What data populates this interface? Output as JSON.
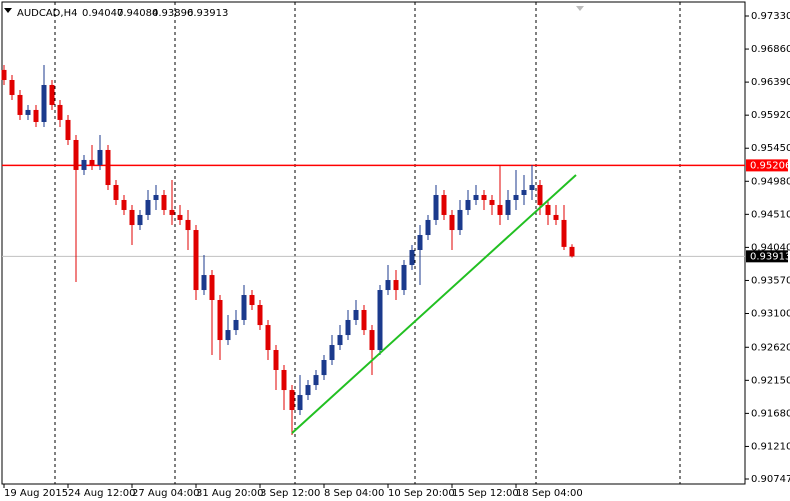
{
  "chart_data": {
    "type": "candlestick",
    "symbol": "AUDCAD,H4",
    "header_values": [
      0.94047,
      0.94084,
      0.93896,
      0.93913
    ],
    "open": [
      0.96563,
      0.9642,
      0.96207,
      0.95923,
      0.95994,
      0.95823,
      0.96349,
      0.96065,
      0.95852,
      0.95567,
      0.95141,
      0.95283,
      0.95212,
      0.95425,
      0.94927,
      0.94714,
      0.94572,
      0.94358,
      0.94501,
      0.94714,
      0.94785,
      0.94572,
      0.94501,
      0.9443,
      0.94287,
      0.93434,
      0.93647,
      0.93292,
      0.92723,
      0.92865,
      0.93008,
      0.93363,
      0.93221,
      0.92936,
      0.92581,
      0.92297,
      0.92012,
      0.91728,
      0.91941,
      0.92083,
      0.92225,
      0.92439,
      0.92652,
      0.92794,
      0.93008,
      0.9315,
      0.92865,
      0.92581,
      0.93434,
      0.93576,
      0.93434,
      0.9379,
      0.94003,
      0.94216,
      0.9443,
      0.94785,
      0.94501,
      0.94287,
      0.94572,
      0.94714,
      0.94785,
      0.94714,
      0.94643,
      0.94501,
      0.94714,
      0.94785,
      0.94856,
      0.94927,
      0.94643,
      0.94501,
      0.9443,
      0.94047
    ],
    "high": [
      0.96634,
      0.96491,
      0.96278,
      0.96065,
      0.96065,
      0.96634,
      0.9642,
      0.96136,
      0.95923,
      0.95638,
      0.95354,
      0.95496,
      0.95638,
      0.95496,
      0.94998,
      0.94785,
      0.94643,
      0.94572,
      0.94856,
      0.94927,
      0.94856,
      0.94998,
      0.94643,
      0.94572,
      0.94358,
      0.93932,
      0.93719,
      0.93363,
      0.93079,
      0.9315,
      0.93505,
      0.93434,
      0.93292,
      0.93008,
      0.92652,
      0.92368,
      0.92083,
      0.92225,
      0.92154,
      0.92297,
      0.9251,
      0.92794,
      0.92936,
      0.9315,
      0.93292,
      0.93221,
      0.92936,
      0.93505,
      0.9379,
      0.93719,
      0.93861,
      0.94074,
      0.94358,
      0.94501,
      0.94927,
      0.94856,
      0.94572,
      0.94714,
      0.94856,
      0.94927,
      0.94856,
      0.94785,
      0.95212,
      0.94856,
      0.95141,
      0.95069,
      0.95212,
      0.94998,
      0.94714,
      0.94643,
      0.94643,
      0.94084
    ],
    "low": [
      0.96349,
      0.96136,
      0.95852,
      0.95852,
      0.95752,
      0.95752,
      0.95994,
      0.95752,
      0.95496,
      0.93548,
      0.95069,
      0.95141,
      0.95141,
      0.94856,
      0.94643,
      0.94501,
      0.94074,
      0.94287,
      0.9443,
      0.94572,
      0.94501,
      0.94358,
      0.94358,
      0.94003,
      0.93292,
      0.93363,
      0.9251,
      0.92439,
      0.92652,
      0.92794,
      0.92936,
      0.9315,
      0.92865,
      0.92439,
      0.92012,
      0.91728,
      0.91372,
      0.91657,
      0.9187,
      0.92012,
      0.92154,
      0.92368,
      0.92581,
      0.92723,
      0.92936,
      0.92794,
      0.92225,
      0.9251,
      0.93363,
      0.93292,
      0.93363,
      0.93719,
      0.93505,
      0.94145,
      0.94358,
      0.9443,
      0.94003,
      0.94216,
      0.94501,
      0.94643,
      0.94572,
      0.94501,
      0.94358,
      0.9443,
      0.94572,
      0.94643,
      0.94714,
      0.94501,
      0.94358,
      0.94358,
      0.94003,
      0.93896
    ],
    "close": [
      0.9642,
      0.96207,
      0.95923,
      0.95994,
      0.95823,
      0.96349,
      0.96065,
      0.95852,
      0.95567,
      0.95141,
      0.95283,
      0.95212,
      0.95425,
      0.94927,
      0.94714,
      0.94572,
      0.94358,
      0.94501,
      0.94714,
      0.94785,
      0.94572,
      0.94501,
      0.9443,
      0.94287,
      0.93434,
      0.93647,
      0.93292,
      0.92723,
      0.92865,
      0.93008,
      0.93363,
      0.93221,
      0.92936,
      0.92581,
      0.92297,
      0.92012,
      0.91728,
      0.91941,
      0.92083,
      0.92225,
      0.92439,
      0.92652,
      0.92794,
      0.93008,
      0.9315,
      0.92865,
      0.92581,
      0.93434,
      0.93576,
      0.93434,
      0.9379,
      0.94003,
      0.94216,
      0.9443,
      0.94785,
      0.94501,
      0.94287,
      0.94572,
      0.94714,
      0.94785,
      0.94714,
      0.94643,
      0.94501,
      0.94714,
      0.94785,
      0.94856,
      0.94927,
      0.94643,
      0.94501,
      0.9443,
      0.94047,
      0.93913
    ],
    "up_color": "#1b3a8c",
    "down_color": "#e00000",
    "xlim": [
      -0.25,
      92.625
    ],
    "ylim": [
      0.90676,
      0.97529
    ],
    "yticks": [
      {
        "value": 0.9733,
        "label": "0.97330"
      },
      {
        "value": 0.9686,
        "label": "0.96860"
      },
      {
        "value": 0.9639,
        "label": "0.96390"
      },
      {
        "value": 0.9592,
        "label": "0.95920"
      },
      {
        "value": 0.9545,
        "label": "0.95450"
      },
      {
        "value": 0.9498,
        "label": "0.94980"
      },
      {
        "value": 0.9451,
        "label": "0.94510"
      },
      {
        "value": 0.9404,
        "label": "0.94040"
      },
      {
        "value": 0.9357,
        "label": "0.93570"
      },
      {
        "value": 0.931,
        "label": "0.93100"
      },
      {
        "value": 0.9262,
        "label": "0.92620"
      },
      {
        "value": 0.9215,
        "label": "0.92150"
      },
      {
        "value": 0.9168,
        "label": "0.91680"
      },
      {
        "value": 0.9121,
        "label": "0.91210"
      },
      0.90747
    ],
    "xticks": [
      {
        "value": 0,
        "label": "19 Aug 2015"
      },
      {
        "value": 8,
        "label": "24 Aug 12:00"
      },
      {
        "value": 16,
        "label": "27 Aug 04:00"
      },
      {
        "value": 24,
        "label": "31 Aug 20:00"
      },
      {
        "value": 32,
        "label": "3 Sep 12:00"
      },
      {
        "value": 40,
        "label": "8 Sep 04:00"
      },
      {
        "value": 48,
        "label": "10 Sep 20:00"
      },
      {
        "value": 56,
        "label": "15 Sep 12:00"
      },
      {
        "value": 64,
        "label": "18 Sep 04:00"
      }
    ],
    "xgrid": [
      6.375,
      21.375,
      36.375,
      51.375,
      66.5,
      84.5
    ],
    "level": {
      "value": 0.95206,
      "color": "#ff0000"
    },
    "bid": 0.93913,
    "trendline": {
      "x": [
        36,
        71.5
      ],
      "y": [
        0.914,
        0.95069
      ],
      "color": "#22c022"
    }
  }
}
